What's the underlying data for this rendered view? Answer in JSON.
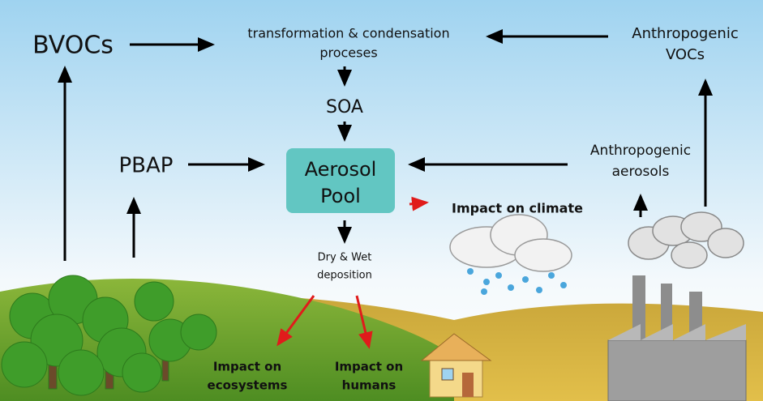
{
  "nodes": {
    "bvocs": {
      "lines": [
        "BVOCs"
      ]
    },
    "transformation": {
      "lines": [
        "transformation & condensation",
        "proceses"
      ]
    },
    "anthropogenic_vocs": {
      "lines": [
        "Anthropogenic",
        "VOCs"
      ]
    },
    "soa": {
      "lines": [
        "SOA"
      ]
    },
    "pbap": {
      "lines": [
        "PBAP"
      ]
    },
    "aerosol_pool": {
      "lines": [
        "Aerosol",
        "Pool"
      ]
    },
    "anthropogenic_aerosols": {
      "lines": [
        "Anthropogenic",
        "aerosols"
      ]
    },
    "impact_climate": {
      "lines": [
        "Impact on climate"
      ]
    },
    "deposition": {
      "lines": [
        "Dry & Wet",
        "deposition"
      ]
    },
    "impact_ecosystems": {
      "lines": [
        "Impact on",
        "ecosystems"
      ]
    },
    "impact_humans": {
      "lines": [
        "Impact on",
        "humans"
      ]
    }
  }
}
